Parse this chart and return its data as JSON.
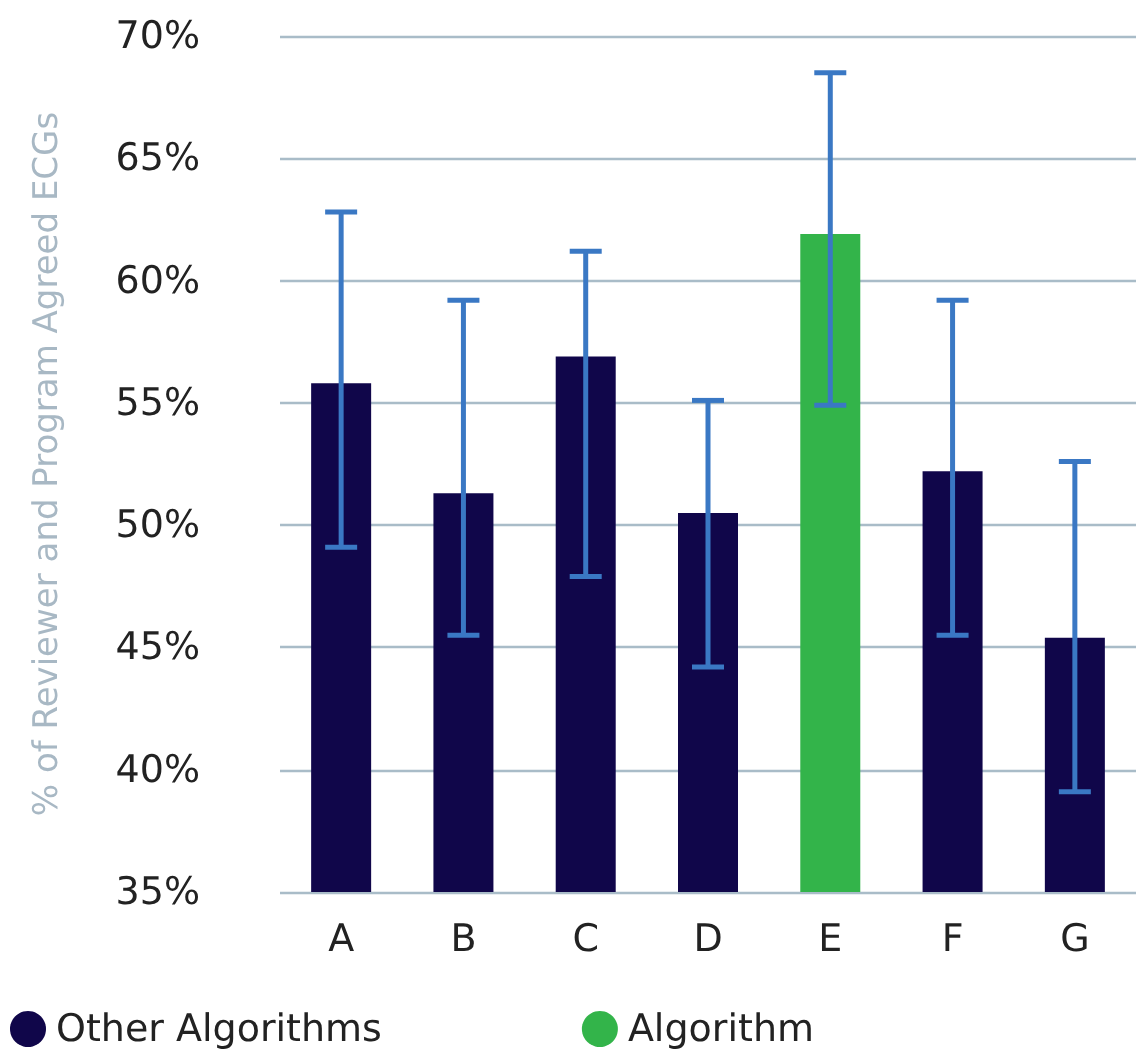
{
  "chart_data": {
    "type": "bar",
    "ylabel": "% of Reviewer and Program Agreed ECGs",
    "categories": [
      "A",
      "B",
      "C",
      "D",
      "E",
      "F",
      "G"
    ],
    "series": [
      {
        "name": "Other Algorithms",
        "color": "#10064a",
        "values": [
          55.8,
          51.3,
          56.9,
          50.5,
          null,
          52.2,
          45.4
        ],
        "errors": [
          [
            49.1,
            62.8
          ],
          [
            45.5,
            59.2
          ],
          [
            47.9,
            61.2
          ],
          [
            44.2,
            55.1
          ],
          null,
          [
            45.5,
            59.2
          ],
          [
            39.1,
            52.6
          ]
        ]
      },
      {
        "name": "Algorithm",
        "color": "#33b44a",
        "values": [
          null,
          null,
          null,
          null,
          61.9,
          null,
          null
        ],
        "errors": [
          null,
          null,
          null,
          null,
          [
            54.9,
            68.5
          ],
          null,
          null
        ]
      }
    ],
    "ylim": [
      35,
      70
    ],
    "yticks": [
      {
        "value": 35,
        "label": "35%"
      },
      {
        "value": 40,
        "label": "40%"
      },
      {
        "value": 45,
        "label": "45%"
      },
      {
        "value": 50,
        "label": "50%"
      },
      {
        "value": 55,
        "label": "55%"
      },
      {
        "value": 60,
        "label": "60%"
      },
      {
        "value": 65,
        "label": "65%"
      },
      {
        "value": 70,
        "label": "70%"
      }
    ],
    "grid": "y",
    "legend": "bottom"
  }
}
